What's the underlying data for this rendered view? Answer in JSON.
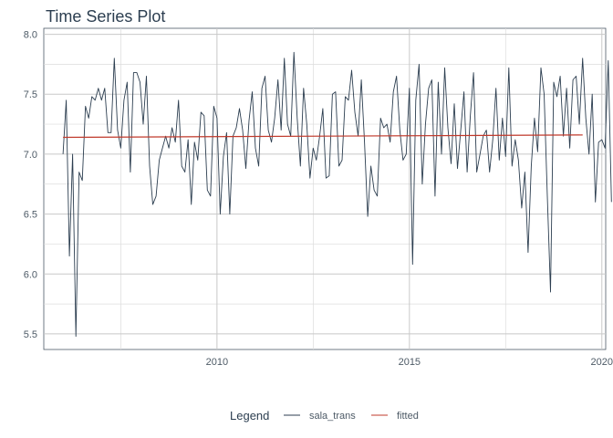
{
  "chart_data": {
    "type": "line",
    "title": "Time Series Plot",
    "xlabel": "",
    "ylabel": "",
    "xlim": [
      2005.5,
      2020.1
    ],
    "ylim": [
      5.37,
      8.05
    ],
    "x_ticks": [
      2010,
      2015,
      2020
    ],
    "x_tick_labels": [
      "2010",
      "2015",
      "2020"
    ],
    "y_ticks": [
      5.5,
      6.0,
      6.5,
      7.0,
      7.5,
      8.0
    ],
    "y_tick_labels": [
      "5.5",
      "6.0",
      "6.5",
      "7.0",
      "7.5",
      "8.0"
    ],
    "grid": true,
    "legend": {
      "title": "Legend",
      "position": "bottom",
      "entries": [
        {
          "label": "sala_trans",
          "color": "#2c3e50"
        },
        {
          "label": "fitted",
          "color": "#c0392b"
        }
      ]
    },
    "series": [
      {
        "name": "sala_trans",
        "color": "#2c3e50",
        "x_start": 2006.0,
        "x_step": 0.08333,
        "values": [
          7.0,
          7.45,
          6.15,
          7.0,
          5.48,
          6.85,
          6.78,
          7.4,
          7.3,
          7.48,
          7.45,
          7.55,
          7.45,
          7.55,
          7.18,
          7.18,
          7.8,
          7.2,
          7.05,
          7.45,
          7.6,
          6.85,
          7.68,
          7.68,
          7.6,
          7.25,
          7.65,
          6.9,
          6.58,
          6.65,
          6.95,
          7.05,
          7.15,
          7.05,
          7.22,
          7.1,
          7.45,
          6.9,
          6.85,
          7.12,
          6.58,
          7.1,
          6.95,
          7.35,
          7.32,
          6.7,
          6.65,
          7.4,
          7.3,
          6.5,
          6.98,
          7.18,
          6.5,
          7.15,
          7.22,
          7.38,
          7.2,
          6.88,
          7.28,
          7.52,
          7.05,
          6.9,
          7.55,
          7.65,
          7.2,
          7.1,
          7.3,
          7.62,
          7.2,
          7.8,
          7.25,
          7.15,
          7.85,
          7.3,
          6.9,
          7.55,
          7.25,
          6.8,
          7.05,
          6.95,
          7.15,
          7.38,
          6.8,
          6.82,
          7.5,
          7.52,
          6.9,
          6.95,
          7.48,
          7.45,
          7.7,
          7.35,
          7.15,
          7.62,
          7.1,
          6.48,
          6.9,
          6.7,
          6.65,
          7.3,
          7.22,
          7.25,
          7.1,
          7.52,
          7.65,
          7.2,
          6.95,
          7.0,
          7.55,
          6.08,
          7.45,
          7.75,
          6.75,
          7.25,
          7.55,
          7.62,
          6.65,
          7.6,
          7.0,
          7.72,
          7.22,
          6.92,
          7.42,
          6.88,
          7.2,
          7.52,
          6.85,
          7.32,
          7.68,
          6.85,
          7.0,
          7.15,
          7.2,
          6.85,
          7.12,
          7.55,
          6.95,
          7.3,
          6.98,
          7.72,
          6.9,
          7.12,
          6.95,
          6.55,
          6.85,
          6.18,
          6.9,
          7.3,
          7.02,
          7.72,
          7.5,
          6.65,
          5.85,
          7.6,
          7.48,
          7.65,
          7.15,
          7.55,
          7.05,
          7.62,
          7.65,
          7.25,
          7.8,
          7.3,
          7.0,
          7.5,
          6.6,
          7.1,
          7.12,
          7.05,
          7.78,
          6.6
        ]
      },
      {
        "name": "fitted",
        "color": "#c0392b",
        "x": [
          2006.0,
          2019.5
        ],
        "values": [
          7.14,
          7.16
        ]
      }
    ]
  }
}
